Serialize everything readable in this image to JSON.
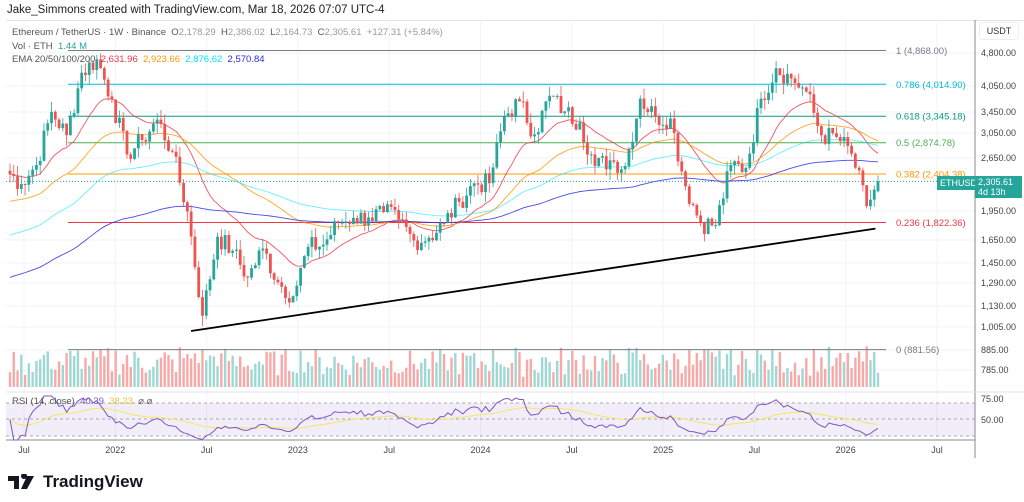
{
  "credit": "Jake_Simmons created with TradingView.com, Mar 18, 2026 07:07 UTC-4",
  "legend": {
    "symbol": "Ethereum / TetherUS · 1W · Binance",
    "o_label": "O",
    "open": "2,178.29",
    "h_label": "H",
    "high": "2,386.02",
    "l_label": "L",
    "low": "2,164.73",
    "c_label": "C",
    "close": "2,305.61",
    "change": "+127.31 (+5.84%)",
    "vol_label": "Vol · ETH",
    "vol": "1.44 M",
    "ema_label": "EMA 20/50/100/200",
    "ema20": "2,631.96",
    "ema50": "2,923.66",
    "ema100": "2,876.62",
    "ema200": "2,570.84"
  },
  "rsi": {
    "label": "RSI (14, close)",
    "value": "40.39",
    "ma": "38.23",
    "levels": [
      "75.00",
      "50.00"
    ]
  },
  "price_axis": {
    "currency": "USDT",
    "ticks": [
      "4,800.00",
      "4,050.00",
      "3,450.00",
      "3,050.00",
      "2,650.00",
      "1,950.00",
      "1,650.00",
      "1,450.00",
      "1,290.00",
      "1,130.00",
      "1,005.00",
      "885.00",
      "785.00"
    ]
  },
  "time_axis": [
    "Jul",
    "2022",
    "Jul",
    "2023",
    "Jul",
    "2024",
    "Jul",
    "2025",
    "Jul",
    "2026",
    "Jul"
  ],
  "current": {
    "symbol": "ETHUSDT",
    "price": "2,305.61",
    "countdown": "4d 13h"
  },
  "fib": [
    {
      "label": "1 (4,868.00)",
      "color": "#787b86"
    },
    {
      "label": "0.786 (4,014.90)",
      "color": "#00bcd4"
    },
    {
      "label": "0.618 (3,345.18)",
      "color": "#089981"
    },
    {
      "label": "0.5 (2,874.78)",
      "color": "#4caf50"
    },
    {
      "label": "0.382 (2,404.38)",
      "color": "#ff9800"
    },
    {
      "label": "0.236 (1,822.36)",
      "color": "#f23645"
    },
    {
      "label": "0 (881.56)",
      "color": "#787b86"
    }
  ],
  "brand": "TradingView",
  "colors": {
    "up": "#26a69a",
    "down": "#ef5350",
    "ema20": "#f23645",
    "ema50": "#ff9800",
    "ema100": "#00e5ff",
    "ema200": "#2929e6",
    "rsi": "#7e57c2",
    "rsi_ma": "#f5e663"
  },
  "chart_data": {
    "type": "candlestick",
    "scale": "log",
    "interval": "1W",
    "fib_levels": [
      4868.0,
      4014.9,
      3345.18,
      2874.78,
      2404.38,
      1822.36,
      881.56
    ],
    "trendline": [
      [
        "2022-06",
        980
      ],
      [
        "2026-03",
        1760
      ]
    ],
    "monthly_closes": [
      [
        "2021-06",
        2270
      ],
      [
        "2021-07",
        2530
      ],
      [
        "2021-08",
        3430
      ],
      [
        "2021-09",
        3000
      ],
      [
        "2021-10",
        4290
      ],
      [
        "2021-11",
        4630
      ],
      [
        "2021-12",
        3680
      ],
      [
        "2022-01",
        2690
      ],
      [
        "2022-02",
        2920
      ],
      [
        "2022-03",
        3280
      ],
      [
        "2022-04",
        2730
      ],
      [
        "2022-05",
        1940
      ],
      [
        "2022-06",
        1070
      ],
      [
        "2022-07",
        1680
      ],
      [
        "2022-08",
        1550
      ],
      [
        "2022-09",
        1330
      ],
      [
        "2022-10",
        1570
      ],
      [
        "2022-11",
        1295
      ],
      [
        "2022-12",
        1196
      ],
      [
        "2023-01",
        1585
      ],
      [
        "2023-02",
        1605
      ],
      [
        "2023-03",
        1820
      ],
      [
        "2023-04",
        1870
      ],
      [
        "2023-05",
        1875
      ],
      [
        "2023-06",
        1935
      ],
      [
        "2023-07",
        1855
      ],
      [
        "2023-08",
        1645
      ],
      [
        "2023-09",
        1670
      ],
      [
        "2023-10",
        1815
      ],
      [
        "2023-11",
        2050
      ],
      [
        "2023-12",
        2280
      ],
      [
        "2024-01",
        2280
      ],
      [
        "2024-02",
        3340
      ],
      [
        "2024-03",
        3640
      ],
      [
        "2024-04",
        3015
      ],
      [
        "2024-05",
        3760
      ],
      [
        "2024-06",
        3440
      ],
      [
        "2024-07",
        3230
      ],
      [
        "2024-08",
        2515
      ],
      [
        "2024-09",
        2600
      ],
      [
        "2024-10",
        2515
      ],
      [
        "2024-11",
        3700
      ],
      [
        "2024-12",
        3335
      ],
      [
        "2025-01",
        3300
      ],
      [
        "2025-02",
        2240
      ],
      [
        "2025-03",
        1820
      ],
      [
        "2025-04",
        1795
      ],
      [
        "2025-05",
        2530
      ],
      [
        "2025-06",
        2490
      ],
      [
        "2025-07",
        3700
      ],
      [
        "2025-08",
        4400
      ],
      [
        "2025-09",
        4150
      ],
      [
        "2025-10",
        3850
      ],
      [
        "2025-11",
        3000
      ],
      [
        "2025-12",
        2970
      ],
      [
        "2026-01",
        2700
      ],
      [
        "2026-02",
        2000
      ],
      [
        "2026-03",
        2305.61
      ]
    ]
  }
}
